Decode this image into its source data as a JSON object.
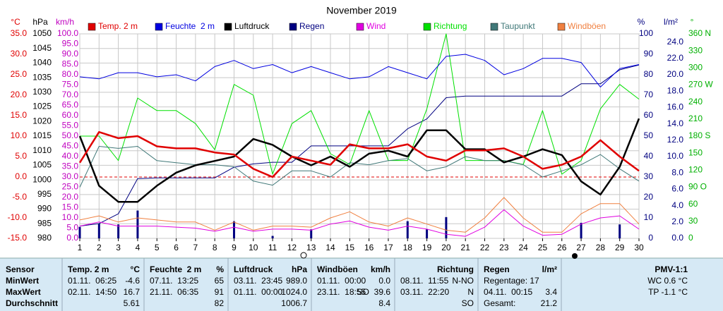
{
  "chart_data": {
    "type": "line",
    "title": "November 2019",
    "x": [
      1,
      2,
      3,
      4,
      5,
      6,
      7,
      8,
      9,
      10,
      11,
      12,
      13,
      14,
      15,
      16,
      17,
      18,
      19,
      20,
      21,
      22,
      23,
      24,
      25,
      26,
      27,
      28,
      29,
      30
    ],
    "xlim": [
      1,
      30
    ],
    "xticks": [
      1,
      2,
      3,
      4,
      5,
      6,
      7,
      8,
      9,
      10,
      11,
      12,
      13,
      14,
      15,
      16,
      17,
      18,
      19,
      20,
      21,
      22,
      23,
      24,
      25,
      26,
      27,
      28,
      29,
      30
    ],
    "grid": true,
    "axes": [
      {
        "label": "°C",
        "side": "left",
        "color": "#e00000",
        "lim": [
          -15,
          35
        ],
        "ticks": [
          {
            "value": 35,
            "label": "35.0"
          },
          {
            "value": 30,
            "label": "30.0"
          },
          {
            "value": 25,
            "label": "25.0"
          },
          {
            "value": 20,
            "label": "20.0"
          },
          {
            "value": 15,
            "label": "15.0"
          },
          {
            "value": 10,
            "label": "10.0"
          },
          {
            "value": 5,
            "label": "5.0"
          },
          {
            "value": 0,
            "label": "0.0"
          },
          {
            "value": -5,
            "label": "-5.0"
          },
          {
            "value": -10,
            "label": "-10.0"
          },
          {
            "value": -15,
            "label": "-15.0"
          }
        ]
      },
      {
        "label": "hPa",
        "side": "left",
        "color": "#000000",
        "lim": [
          980,
          1050
        ],
        "ticks": [
          1050,
          1045,
          1040,
          1035,
          1030,
          1025,
          1020,
          1015,
          1010,
          1005,
          1000,
          995,
          990,
          985,
          980
        ]
      },
      {
        "label": "km/h",
        "side": "left",
        "color": "#c000c0",
        "lim": [
          0,
          100
        ],
        "ticks": [
          {
            "value": 100,
            "label": "100.0"
          },
          {
            "value": 95,
            "label": "95.0"
          },
          {
            "value": 90,
            "label": "90.0"
          },
          {
            "value": 85,
            "label": "85.0"
          },
          {
            "value": 80,
            "label": "80.0"
          },
          {
            "value": 75,
            "label": "75.0"
          },
          {
            "value": 70,
            "label": "70.0"
          },
          {
            "value": 65,
            "label": "65.0"
          },
          {
            "value": 60,
            "label": "60.0"
          },
          {
            "value": 55,
            "label": "55.0"
          },
          {
            "value": 50,
            "label": "50.0"
          },
          {
            "value": 45,
            "label": "45.0"
          },
          {
            "value": 40,
            "label": "40.0"
          },
          {
            "value": 35,
            "label": "35.0"
          },
          {
            "value": 30,
            "label": "30.0"
          },
          {
            "value": 25,
            "label": "25.0"
          },
          {
            "value": 20,
            "label": "20.0"
          },
          {
            "value": 15,
            "label": "15.0"
          },
          {
            "value": 10,
            "label": "10.0"
          },
          {
            "value": 5,
            "label": "5.0"
          },
          {
            "value": 0,
            "label": "0.0"
          }
        ]
      },
      {
        "label": "%",
        "side": "right",
        "color": "#000080",
        "lim": [
          0,
          100
        ],
        "ticks": [
          100,
          90,
          80,
          70,
          60,
          50,
          40,
          30,
          20,
          10,
          0
        ]
      },
      {
        "label": "l/m²",
        "side": "right",
        "color": "#000080",
        "lim": [
          0,
          25
        ],
        "ticks": [
          {
            "value": 24,
            "label": "24.0"
          },
          {
            "value": 22,
            "label": "22.0"
          },
          {
            "value": 20,
            "label": "20.0"
          },
          {
            "value": 18,
            "label": "18.0"
          },
          {
            "value": 16,
            "label": "16.0"
          },
          {
            "value": 14,
            "label": "14.0"
          },
          {
            "value": 12,
            "label": "12.0"
          },
          {
            "value": 10,
            "label": "10.0"
          },
          {
            "value": 8,
            "label": "8.0"
          },
          {
            "value": 6,
            "label": "6.0"
          },
          {
            "value": 4,
            "label": "4.0"
          },
          {
            "value": 2,
            "label": "2.0"
          },
          {
            "value": 0,
            "label": "0.0"
          }
        ]
      },
      {
        "label": "°",
        "side": "right",
        "color": "#00b000",
        "lim": [
          0,
          360
        ],
        "ticks": [
          {
            "value": 360,
            "label": "360 N"
          },
          330,
          300,
          {
            "value": 270,
            "label": "270 W"
          },
          240,
          210,
          {
            "value": 180,
            "label": "180 S"
          },
          150,
          120,
          {
            "value": 90,
            "label": "90 O"
          },
          60,
          30,
          0
        ]
      }
    ],
    "series": [
      {
        "name": "Temp. 2 m",
        "color": "#e00000",
        "axis": 0,
        "width": 2.5,
        "values": [
          3.5,
          11,
          9.5,
          10,
          7.5,
          7,
          7,
          6,
          5.5,
          2,
          0,
          5,
          4,
          3,
          8,
          7,
          7,
          8,
          5,
          4,
          6.5,
          6.5,
          7,
          5,
          2,
          3,
          5,
          9,
          5,
          1.5
        ]
      },
      {
        "name": "Feuchte  2 m",
        "color": "#0000e0",
        "axis": 3,
        "width": 1,
        "values": [
          79,
          78,
          81,
          81,
          79,
          80,
          77,
          84,
          87,
          83,
          85,
          81,
          84,
          81,
          78,
          79,
          84,
          81,
          78,
          89,
          90,
          87,
          80,
          83,
          88,
          88,
          86,
          74,
          83,
          85
        ]
      },
      {
        "name": "Luftdruck",
        "color": "#000000",
        "axis": 1,
        "width": 2.5,
        "values": [
          1015,
          998,
          992.5,
          992.5,
          998,
          1002.5,
          1005,
          1006.5,
          1008,
          1014,
          1012,
          1008,
          1005,
          1008,
          1004.5,
          1009,
          1010,
          1008,
          1017,
          1017,
          1010.5,
          1010.5,
          1006,
          1008,
          1010.5,
          1008.5,
          999.5,
          995,
          1004.5,
          1021
        ]
      },
      {
        "name": "Regen",
        "color": "#000080",
        "axis": 4,
        "width": 1,
        "bars": [
          1.4,
          1.8,
          1.7,
          3.4,
          0,
          0,
          0,
          0,
          2.1,
          0,
          0.3,
          0,
          1.1,
          0,
          0,
          0,
          0,
          2.1,
          1.1,
          2.6,
          0,
          0,
          0,
          0,
          0,
          0,
          1.9,
          0,
          1.7,
          0
        ],
        "values": [
          1.5,
          1.8,
          3,
          7.3,
          7.4,
          7.4,
          7.4,
          7.4,
          8.7,
          9.1,
          9.3,
          9.3,
          11.3,
          11.3,
          11.3,
          11.3,
          11.3,
          13.4,
          14.6,
          17.2,
          17.4,
          17.4,
          17.4,
          17.4,
          17.4,
          17.4,
          18.9,
          18.9,
          20.6,
          21.2
        ]
      },
      {
        "name": "Wind",
        "color": "#e000e0",
        "axis": 2,
        "width": 1,
        "values": [
          6,
          8,
          6,
          6,
          6,
          5.5,
          5,
          3.5,
          5.5,
          3.5,
          4.5,
          4.5,
          4,
          7,
          8.5,
          5.5,
          4,
          6,
          4.5,
          2,
          1,
          5.5,
          14,
          6,
          1.5,
          2,
          7,
          10,
          11,
          4.5
        ]
      },
      {
        "name": "Richtung",
        "color": "#00e000",
        "axis": 5,
        "width": 1,
        "values": [
          180,
          180,
          137,
          247,
          225,
          225,
          202,
          156,
          271,
          252,
          113,
          202,
          225,
          149,
          130,
          225,
          137,
          137,
          228,
          360,
          137,
          137,
          137,
          130,
          225,
          113,
          137,
          228,
          271,
          245
        ]
      },
      {
        "name": "Taupunkt",
        "color": "#407878",
        "axis": 0,
        "width": 1,
        "values": [
          -2.5,
          7.5,
          7,
          7.5,
          4,
          3.5,
          3,
          3,
          2.5,
          -1,
          -2,
          1.5,
          1.5,
          0,
          3.5,
          3,
          4,
          4.5,
          1.5,
          2.5,
          5,
          4,
          4,
          3,
          0,
          1.5,
          3,
          5.5,
          2,
          -1
        ]
      },
      {
        "name": "Windböen",
        "color": "#f08040",
        "axis": 2,
        "width": 1,
        "values": [
          9,
          11,
          8,
          10,
          9,
          8,
          8,
          4,
          8,
          4,
          6,
          6,
          5.5,
          10,
          13,
          8,
          6,
          10,
          7,
          4,
          3,
          10,
          20,
          10,
          3,
          3,
          12,
          17,
          17,
          7
        ]
      }
    ]
  },
  "table": {
    "header": [
      [
        "Sensor"
      ],
      [
        "Temp. 2 m",
        "°C"
      ],
      [
        "Feuchte  2 m",
        "%"
      ],
      [
        "Luftdruck",
        "hPa"
      ],
      [
        "Windböen",
        "km/h"
      ],
      [
        "Richtung"
      ],
      [
        "Regen",
        "l/m²"
      ],
      [
        "PMV-1:1"
      ]
    ],
    "rows": [
      [
        "MinWert",
        [
          "01.11.  06:25",
          "-4.6"
        ],
        [
          "07.11.  13:25",
          "65"
        ],
        [
          "03.11.  23:45",
          "989.0"
        ],
        [
          "01.11.  00:00",
          "0.0"
        ],
        [
          "08.11.  11:55",
          "N-NO"
        ],
        "Regentage: 17",
        [
          "WC 0.6 °C"
        ]
      ],
      [
        "MaxWert",
        [
          "02.11.  14:50",
          "16.7"
        ],
        [
          "21.11.  06:35",
          "91"
        ],
        [
          "01.11.  00:00",
          "1024.0"
        ],
        [
          "23.11.  18:55",
          "SO",
          "39.6"
        ],
        [
          "03.11.  22:20",
          "N"
        ],
        [
          "04.11.  00:15",
          "3.4"
        ],
        [
          "TP -1.1 °C"
        ]
      ],
      [
        "Durchschnitt",
        [
          "5.61"
        ],
        [
          "82"
        ],
        [
          "1006.7"
        ],
        [
          "8.4"
        ],
        [
          "SO"
        ],
        [
          "Gesamt:",
          "21.2"
        ]
      ]
    ]
  }
}
